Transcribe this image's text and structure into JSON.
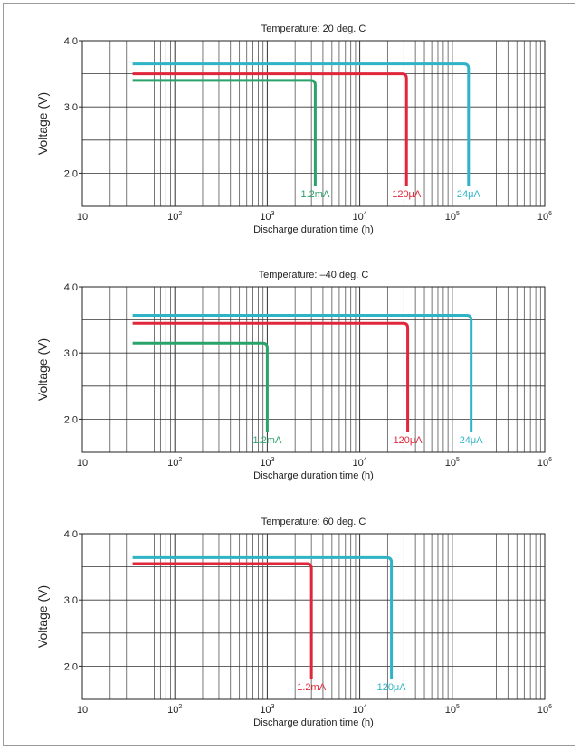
{
  "chart_data": [
    {
      "type": "line",
      "title": "Temperature: 20 deg. C",
      "xlabel": "Discharge duration time (h)",
      "ylabel": "Voltage (V)",
      "x_scale": "log",
      "xlim": [
        10,
        1000000
      ],
      "ylim": [
        1.5,
        4.0
      ],
      "x_ticks": [
        "10",
        "10^2",
        "10^3",
        "10^4",
        "10^5",
        "10^6"
      ],
      "y_ticks": [
        "2.0",
        "3.0",
        "4.0"
      ],
      "series": [
        {
          "name": "24μA",
          "color": "#2fb3c6",
          "plateau": 3.65,
          "start_x": 35,
          "end_x": 150000,
          "end_voltage": 1.8
        },
        {
          "name": "120μA",
          "color": "#e0263a",
          "plateau": 3.5,
          "start_x": 35,
          "end_x": 32000,
          "end_voltage": 1.8
        },
        {
          "name": "1.2mA",
          "color": "#2aa36b",
          "plateau": 3.4,
          "start_x": 35,
          "end_x": 3300,
          "end_voltage": 1.8
        }
      ]
    },
    {
      "type": "line",
      "title": "Temperature: –40 deg. C",
      "xlabel": "Discharge duration time (h)",
      "ylabel": "Voltage (V)",
      "x_scale": "log",
      "xlim": [
        10,
        1000000
      ],
      "ylim": [
        1.5,
        4.0
      ],
      "x_ticks": [
        "10",
        "10^2",
        "10^3",
        "10^4",
        "10^5",
        "10^6"
      ],
      "y_ticks": [
        "2.0",
        "3.0",
        "4.0"
      ],
      "series": [
        {
          "name": "24μA",
          "color": "#2fb3c6",
          "plateau": 3.57,
          "start_x": 35,
          "end_x": 160000,
          "end_voltage": 1.8
        },
        {
          "name": "120μA",
          "color": "#e0263a",
          "plateau": 3.45,
          "start_x": 35,
          "end_x": 33000,
          "end_voltage": 1.8
        },
        {
          "name": "1.2mA",
          "color": "#2aa36b",
          "plateau": 3.15,
          "start_x": 35,
          "end_x": 1000,
          "end_voltage": 1.8
        }
      ]
    },
    {
      "type": "line",
      "title": "Temperature: 60 deg. C",
      "xlabel": "Discharge duration time (h)",
      "ylabel": "Voltage (V)",
      "x_scale": "log",
      "xlim": [
        10,
        1000000
      ],
      "ylim": [
        1.5,
        4.0
      ],
      "x_ticks": [
        "10",
        "10^2",
        "10^3",
        "10^4",
        "10^5",
        "10^6"
      ],
      "y_ticks": [
        "2.0",
        "3.0",
        "4.0"
      ],
      "series": [
        {
          "name": "120μA",
          "color": "#2fb3c6",
          "plateau": 3.64,
          "start_x": 35,
          "end_x": 22000,
          "end_voltage": 1.8
        },
        {
          "name": "1.2mA",
          "color": "#e0263a",
          "plateau": 3.55,
          "start_x": 35,
          "end_x": 3000,
          "end_voltage": 1.8
        }
      ]
    }
  ]
}
